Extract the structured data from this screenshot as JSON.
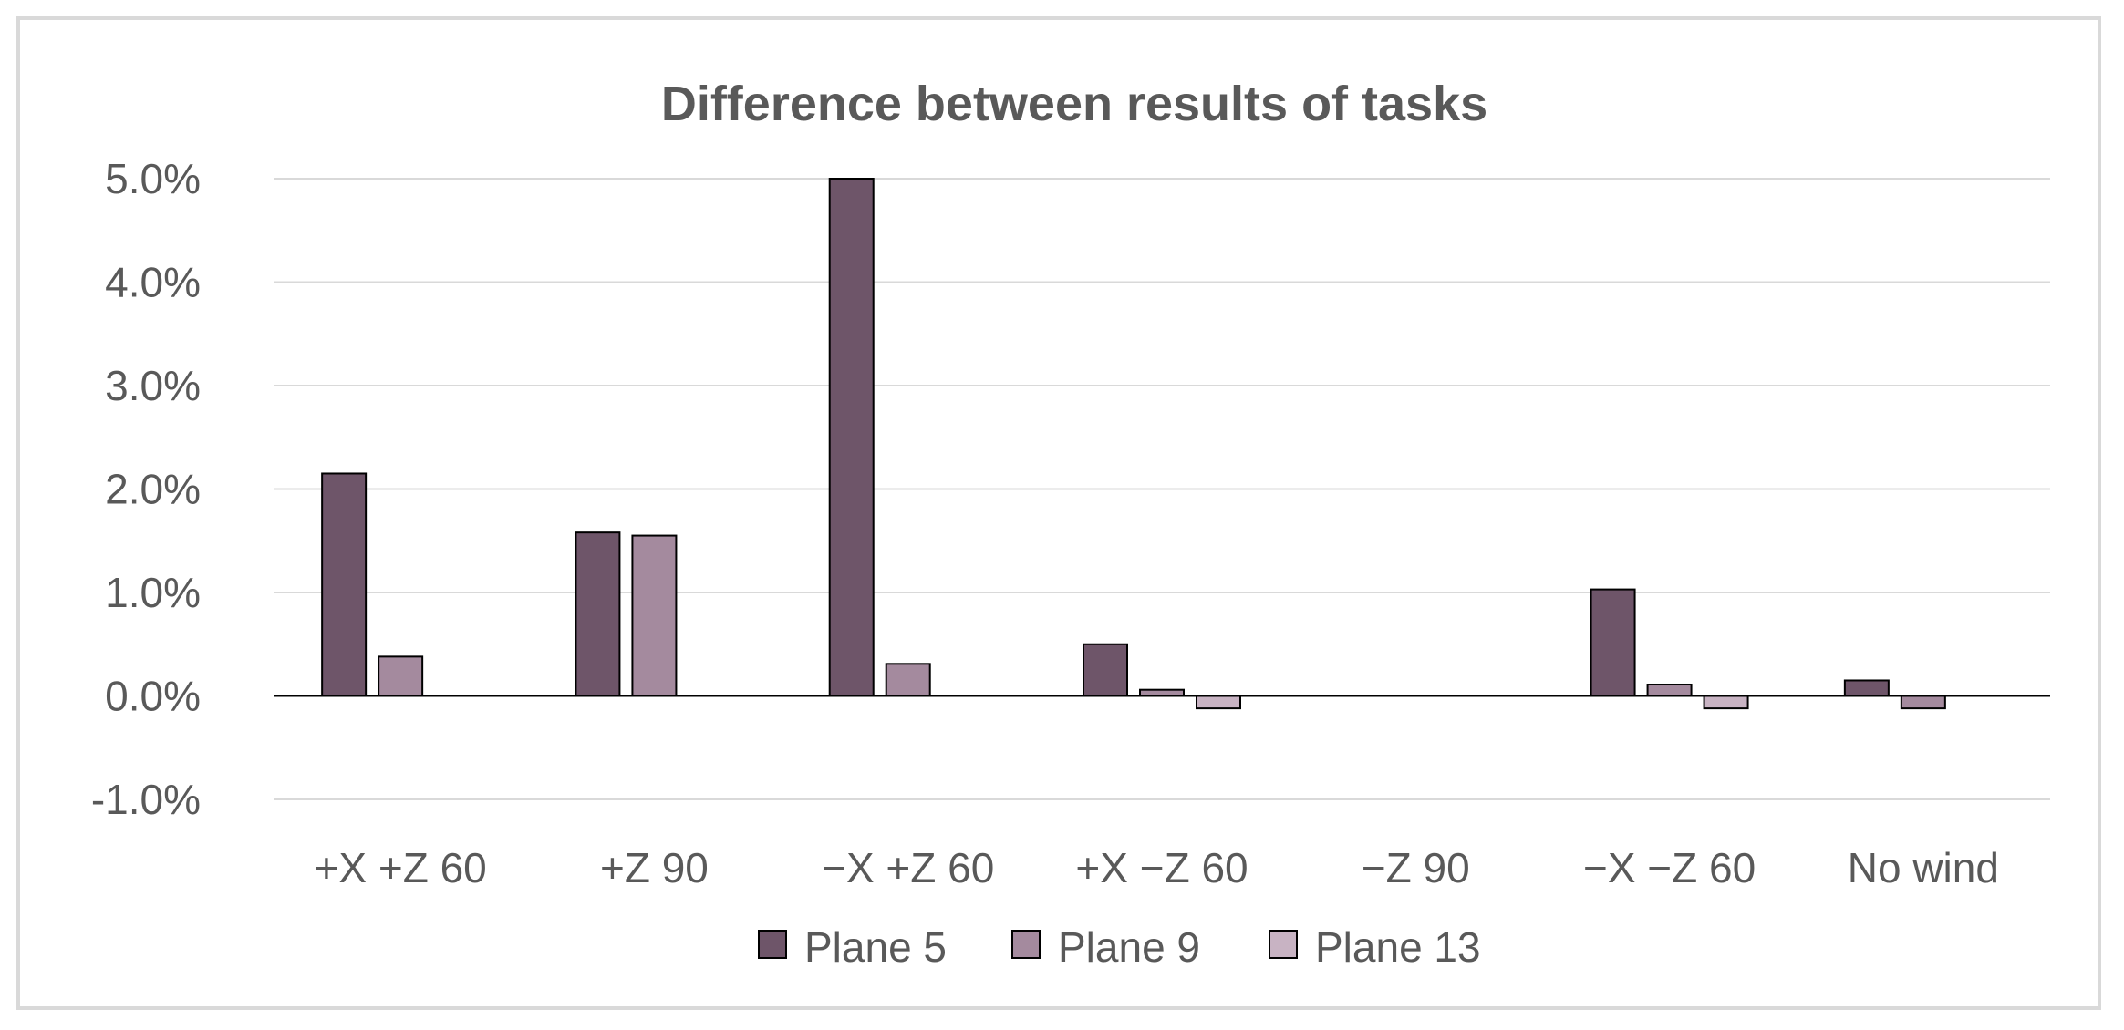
{
  "chart_data": {
    "type": "bar",
    "title": "Difference between results of tasks",
    "xlabel": "",
    "ylabel": "",
    "categories": [
      "+X +Z 60",
      "+Z 90",
      "−X +Z 60",
      "+X −Z 60",
      "−Z 90",
      "−X −Z 60",
      "No wind"
    ],
    "series": [
      {
        "name": "Plane 5",
        "color": "#6e5569",
        "values": [
          0.0215,
          0.0158,
          0.05,
          0.005,
          0,
          0.0103,
          0.0015
        ]
      },
      {
        "name": "Plane 9",
        "color": "#a48a9e",
        "values": [
          0.0038,
          0.0155,
          0.0031,
          0.0006,
          0,
          0.0011,
          -0.0012
        ]
      },
      {
        "name": "Plane 13",
        "color": "#c8b3c3",
        "values": [
          0,
          0,
          0,
          -0.0012,
          0,
          -0.0012,
          0
        ]
      }
    ],
    "ylim": [
      -0.01,
      0.05
    ],
    "yticks": [
      "5.0%",
      "4.0%",
      "3.0%",
      "2.0%",
      "1.0%",
      "0.0%",
      "-1.0%"
    ],
    "ytick_values": [
      0.05,
      0.04,
      0.03,
      0.02,
      0.01,
      0,
      -0.01
    ],
    "grid": true,
    "legend_position": "bottom"
  }
}
